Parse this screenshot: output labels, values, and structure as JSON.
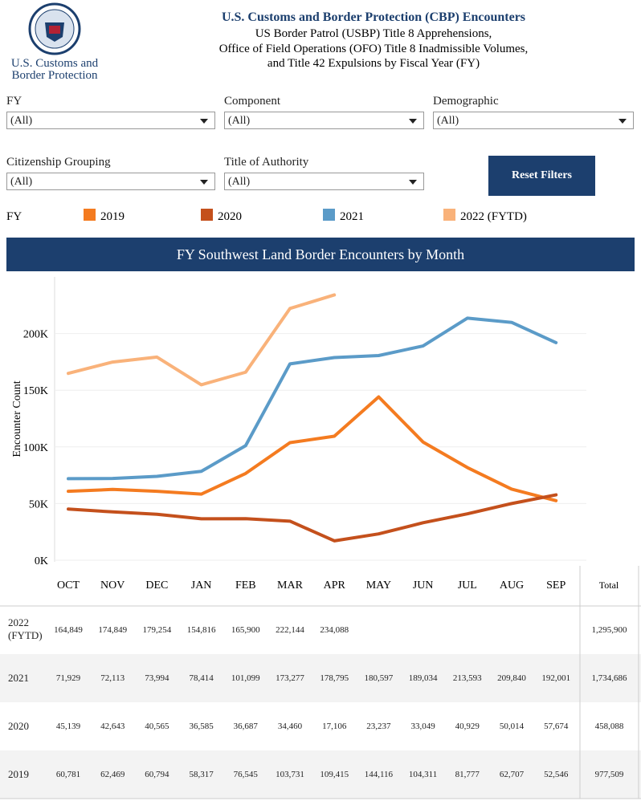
{
  "header": {
    "logo_text": [
      "U.S. Customs and",
      "Border Protection"
    ],
    "title": "U.S. Customs and Border Protection (CBP) Encounters",
    "subtitle": [
      "US Border Patrol (USBP) Title 8 Apprehensions,",
      "Office of Field Operations (OFO) Title 8 Inadmissible Volumes,",
      "and Title 42 Expulsions by Fiscal Year (FY)"
    ]
  },
  "filters": [
    {
      "label": "FY",
      "value": "(All)"
    },
    {
      "label": "Component",
      "value": "(All)"
    },
    {
      "label": "Demographic",
      "value": "(All)"
    },
    {
      "label": "Citizenship Grouping",
      "value": "(All)"
    },
    {
      "label": "Title of Authority",
      "value": "(All)"
    }
  ],
  "reset_button": "Reset Filters",
  "legend_title": "FY",
  "chart_data": {
    "type": "line",
    "title": "FY Southwest Land Border Encounters by Month",
    "y_label": "Encounter Count",
    "categories": [
      "OCT",
      "NOV",
      "DEC",
      "JAN",
      "FEB",
      "MAR",
      "APR",
      "MAY",
      "JUN",
      "JUL",
      "AUG",
      "SEP"
    ],
    "ylim": [
      0,
      250000
    ],
    "yticks": [
      {
        "value": 0,
        "label": "0K"
      },
      {
        "value": 50000,
        "label": "50K"
      },
      {
        "value": 100000,
        "label": "100K"
      },
      {
        "value": 150000,
        "label": "150K"
      },
      {
        "value": 200000,
        "label": "200K"
      }
    ],
    "grid": true,
    "series": [
      {
        "name": "2019",
        "color": "#f47b20",
        "values": [
          60781,
          62469,
          60794,
          58317,
          76545,
          103731,
          109415,
          144116,
          104311,
          81777,
          62707,
          52546
        ],
        "value_labels": [
          "60,781",
          "62,469",
          "60,794",
          "58,317",
          "76,545",
          "103,731",
          "109,415",
          "144,116",
          "104,311",
          "81,777",
          "62,707",
          "52,546"
        ]
      },
      {
        "name": "2020",
        "color": "#c4501c",
        "values": [
          45139,
          42643,
          40565,
          36585,
          36687,
          34460,
          17106,
          23237,
          33049,
          40929,
          50014,
          57674
        ],
        "value_labels": [
          "45,139",
          "42,643",
          "40,565",
          "36,585",
          "36,687",
          "34,460",
          "17,106",
          "23,237",
          "33,049",
          "40,929",
          "50,014",
          "57,674"
        ]
      },
      {
        "name": "2021",
        "color": "#5b9bc8",
        "values": [
          71929,
          72113,
          73994,
          78414,
          101099,
          173277,
          178795,
          180597,
          189034,
          213593,
          209840,
          192001
        ],
        "value_labels": [
          "71,929",
          "72,113",
          "73,994",
          "78,414",
          "101,099",
          "173,277",
          "178,795",
          "180,597",
          "189,034",
          "213,593",
          "209,840",
          "192,001"
        ]
      },
      {
        "name": "2022 (FYTD)",
        "color": "#f9b27a",
        "values": [
          164849,
          174849,
          179254,
          154816,
          165900,
          222144,
          234088,
          null,
          null,
          null,
          null,
          null
        ],
        "value_labels": [
          "164,849",
          "174,849",
          "179,254",
          "154,816",
          "165,900",
          "222,144",
          "234,088",
          null,
          null,
          null,
          null,
          null
        ]
      }
    ]
  },
  "table": {
    "total_header": "Total",
    "totals": [
      "977,509",
      "458,088",
      "1,734,686",
      "1,295,900"
    ]
  }
}
